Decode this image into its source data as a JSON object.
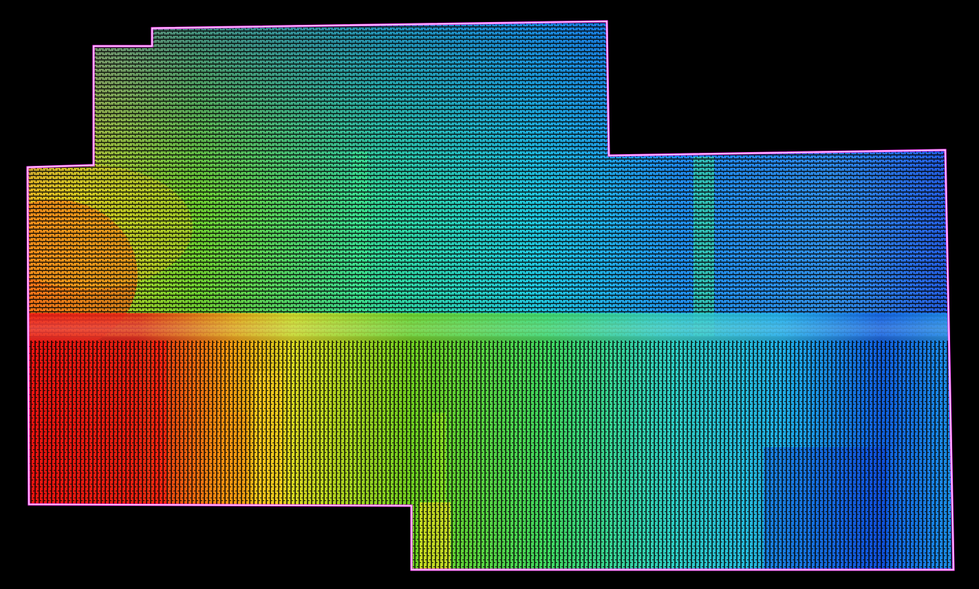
{
  "map": {
    "type": "point-cloud-elevation",
    "background_color": "#000000",
    "boundary_color": "#ff33ff",
    "boundary_highlight": "#ffffff",
    "colormap": [
      "#ff0000",
      "#ffff00",
      "#00ff00",
      "#00ffff",
      "#0000ff"
    ],
    "regions": [
      {
        "name": "upper-left-swath",
        "scan_direction": "horizontal",
        "dominant_colors": [
          "#00ff00",
          "#00ffff",
          "#0000ff"
        ]
      },
      {
        "name": "west-edge-swath",
        "scan_direction": "horizontal",
        "dominant_colors": [
          "#ffff00",
          "#ff8800",
          "#ff0000"
        ]
      },
      {
        "name": "upper-right-swath",
        "scan_direction": "horizontal",
        "dominant_colors": [
          "#00ffff",
          "#0000ff"
        ]
      },
      {
        "name": "lower-swath",
        "scan_direction": "vertical",
        "dominant_colors": [
          "#ff0000",
          "#ffff00",
          "#00ff00",
          "#00ffff",
          "#0000ff"
        ]
      }
    ]
  }
}
